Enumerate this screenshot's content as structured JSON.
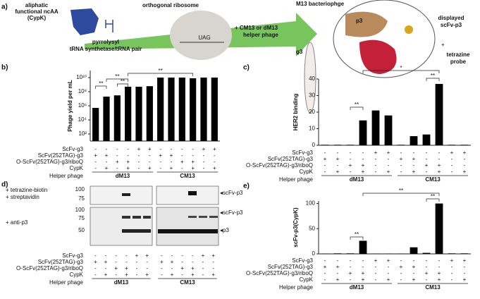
{
  "panel_a": {
    "letter": "a)",
    "ncaa": [
      "aliphatic",
      "functional ncAA",
      "(CypK)"
    ],
    "ribosome": "orthogonal ribosome",
    "synthetase": [
      "pyrrolysyl",
      "tRNA synthetase/tRNA pair"
    ],
    "codon": "UAG",
    "helper": [
      "+ CM13 or dM13",
      "helper phage"
    ],
    "phage": "M13 bacteriophge",
    "p3": "p3",
    "g3": "g3",
    "displayed": [
      "displayed",
      "scFv-p3"
    ],
    "probe": [
      "tetrazine",
      "probe"
    ],
    "plus": "+"
  },
  "chart_data": [
    {
      "type": "bar",
      "letter": "b)",
      "ylabel": "Phage yield per mL",
      "log": true,
      "color": "#000000",
      "values": [
        500000,
        20000000,
        30000000,
        500000000,
        500000000,
        600000000,
        10000000000,
        10000000000,
        10000000000,
        8000000000,
        10000000000,
        10000000000
      ],
      "ylim": [
        10,
        100000000000
      ],
      "yticks": [
        {
          "value": 100,
          "label": "10²"
        },
        {
          "value": 10000,
          "label": "10⁴"
        },
        {
          "value": 1000000,
          "label": "10⁶"
        },
        {
          "value": 100000000,
          "label": "10⁸"
        },
        {
          "value": 10000000000,
          "label": "10¹⁰"
        }
      ],
      "annotations": [
        "**",
        "**",
        "**",
        "**"
      ],
      "conditions": [
        {
          "name": "ScFv-g3",
          "signs": [
            "-",
            "-",
            "-",
            "-",
            "+",
            "+",
            "-",
            "-",
            "-",
            "-",
            "+",
            "+"
          ]
        },
        {
          "name": "ScFv(252TAG)-g3",
          "signs": [
            "+",
            "+",
            "-",
            "-",
            "-",
            "-",
            "+",
            "+",
            "-",
            "-",
            "-",
            "-"
          ]
        },
        {
          "name": "O-ScFv(252TAG)-g3/riboQ",
          "signs": [
            "-",
            "-",
            "+",
            "+",
            "-",
            "-",
            "-",
            "-",
            "+",
            "+",
            "-",
            "-"
          ]
        },
        {
          "name": "CypK",
          "signs": [
            "-",
            "+",
            "-",
            "+",
            "-",
            "+",
            "-",
            "+",
            "-",
            "+",
            "-",
            "+"
          ]
        }
      ],
      "group_label": "Helper phage",
      "groups": [
        "dM13",
        "CM13"
      ]
    },
    {
      "type": "bar",
      "letter": "c)",
      "ylabel": "HER2 binding",
      "log": false,
      "color": "#000000",
      "values": [
        0.3,
        0.3,
        0.3,
        15,
        21,
        18,
        0.3,
        5.5,
        6.5,
        37,
        0.3,
        0.3
      ],
      "ylim": [
        0,
        40
      ],
      "yticks": [
        0,
        10,
        20,
        30,
        40
      ],
      "annotations": [
        "**",
        "*",
        "**"
      ],
      "conditions": [
        {
          "name": "ScFv-g3",
          "signs": [
            "-",
            "-",
            "-",
            "-",
            "+",
            "+",
            "-",
            "-",
            "-",
            "-",
            "+",
            "+"
          ]
        },
        {
          "name": "ScFv(252TAG)-g3",
          "signs": [
            "+",
            "+",
            "-",
            "-",
            "-",
            "-",
            "+",
            "+",
            "-",
            "-",
            "-",
            "-"
          ]
        },
        {
          "name": "O-ScFv(252TAG)-g3/riboQ",
          "signs": [
            "-",
            "-",
            "+",
            "+",
            "-",
            "-",
            "-",
            "-",
            "+",
            "+",
            "-",
            "-"
          ]
        },
        {
          "name": "CypK",
          "signs": [
            "-",
            "+",
            "-",
            "+",
            "-",
            "+",
            "-",
            "+",
            "-",
            "+",
            "-",
            "+"
          ]
        }
      ],
      "group_label": "Helper phage",
      "groups": [
        "dM13",
        "CM13"
      ]
    },
    {
      "type": "bar",
      "letter": "e)",
      "ylabel": "scFv-p3(CypK)",
      "log": false,
      "color": "#000000",
      "values": [
        0.5,
        1,
        1,
        26,
        0.5,
        0.5,
        0.5,
        13,
        2,
        100,
        1,
        1
      ],
      "ylim": [
        0,
        105
      ],
      "yticks": [
        0,
        50,
        100
      ],
      "annotations": [
        "**",
        "**",
        "**"
      ],
      "conditions": [
        {
          "name": "ScFv-g3",
          "signs": [
            "-",
            "-",
            "-",
            "-",
            "+",
            "+",
            "-",
            "-",
            "-",
            "-",
            "+",
            "+"
          ]
        },
        {
          "name": "ScFv(252TAG)-g3",
          "signs": [
            "+",
            "+",
            "-",
            "-",
            "-",
            "-",
            "+",
            "+",
            "-",
            "-",
            "-",
            "-"
          ]
        },
        {
          "name": "O-ScFv(252TAG)-g3/riboQ",
          "signs": [
            "-",
            "-",
            "+",
            "+",
            "-",
            "-",
            "-",
            "-",
            "+",
            "+",
            "-",
            "-"
          ]
        },
        {
          "name": "CypK",
          "signs": [
            "-",
            "+",
            "-",
            "+",
            "-",
            "+",
            "-",
            "+",
            "-",
            "+",
            "-",
            "+"
          ]
        }
      ],
      "group_label": "Helper phage",
      "groups": [
        "dM13",
        "CM13"
      ]
    }
  ],
  "blot": {
    "letter": "d)",
    "probe_top": [
      "+ tetrazine-biotin",
      "+ streptavidin"
    ],
    "probe_bottom": "+ anti-p3",
    "markers_top": [
      "100",
      "75"
    ],
    "markers_bottom": [
      "100",
      "75",
      "50"
    ],
    "band_top": "◂scFv-p3",
    "band_mid": "◂scFv-p3",
    "band_low": "◂p3",
    "conditions": [
      {
        "name": "ScFv-g3",
        "signs": [
          "-",
          "-",
          "-",
          "-",
          "+",
          "+",
          "-",
          "-",
          "-",
          "-",
          "+",
          "+"
        ]
      },
      {
        "name": "ScFv(252TAG)-g3",
        "signs": [
          "+",
          "+",
          "-",
          "-",
          "-",
          "-",
          "+",
          "+",
          "-",
          "-",
          "-",
          "-"
        ]
      },
      {
        "name": "O-ScFv(252TAG)-g3/riboQ",
        "signs": [
          "-",
          "-",
          "+",
          "+",
          "-",
          "-",
          "-",
          "-",
          "+",
          "+",
          "-",
          "-"
        ]
      },
      {
        "name": "CypK",
        "signs": [
          "-",
          "+",
          "-",
          "+",
          "-",
          "+",
          "-",
          "+",
          "-",
          "+",
          "-",
          "+"
        ]
      }
    ],
    "group_label": "Helper phage",
    "groups": [
      "dM13",
      "CM13"
    ]
  }
}
